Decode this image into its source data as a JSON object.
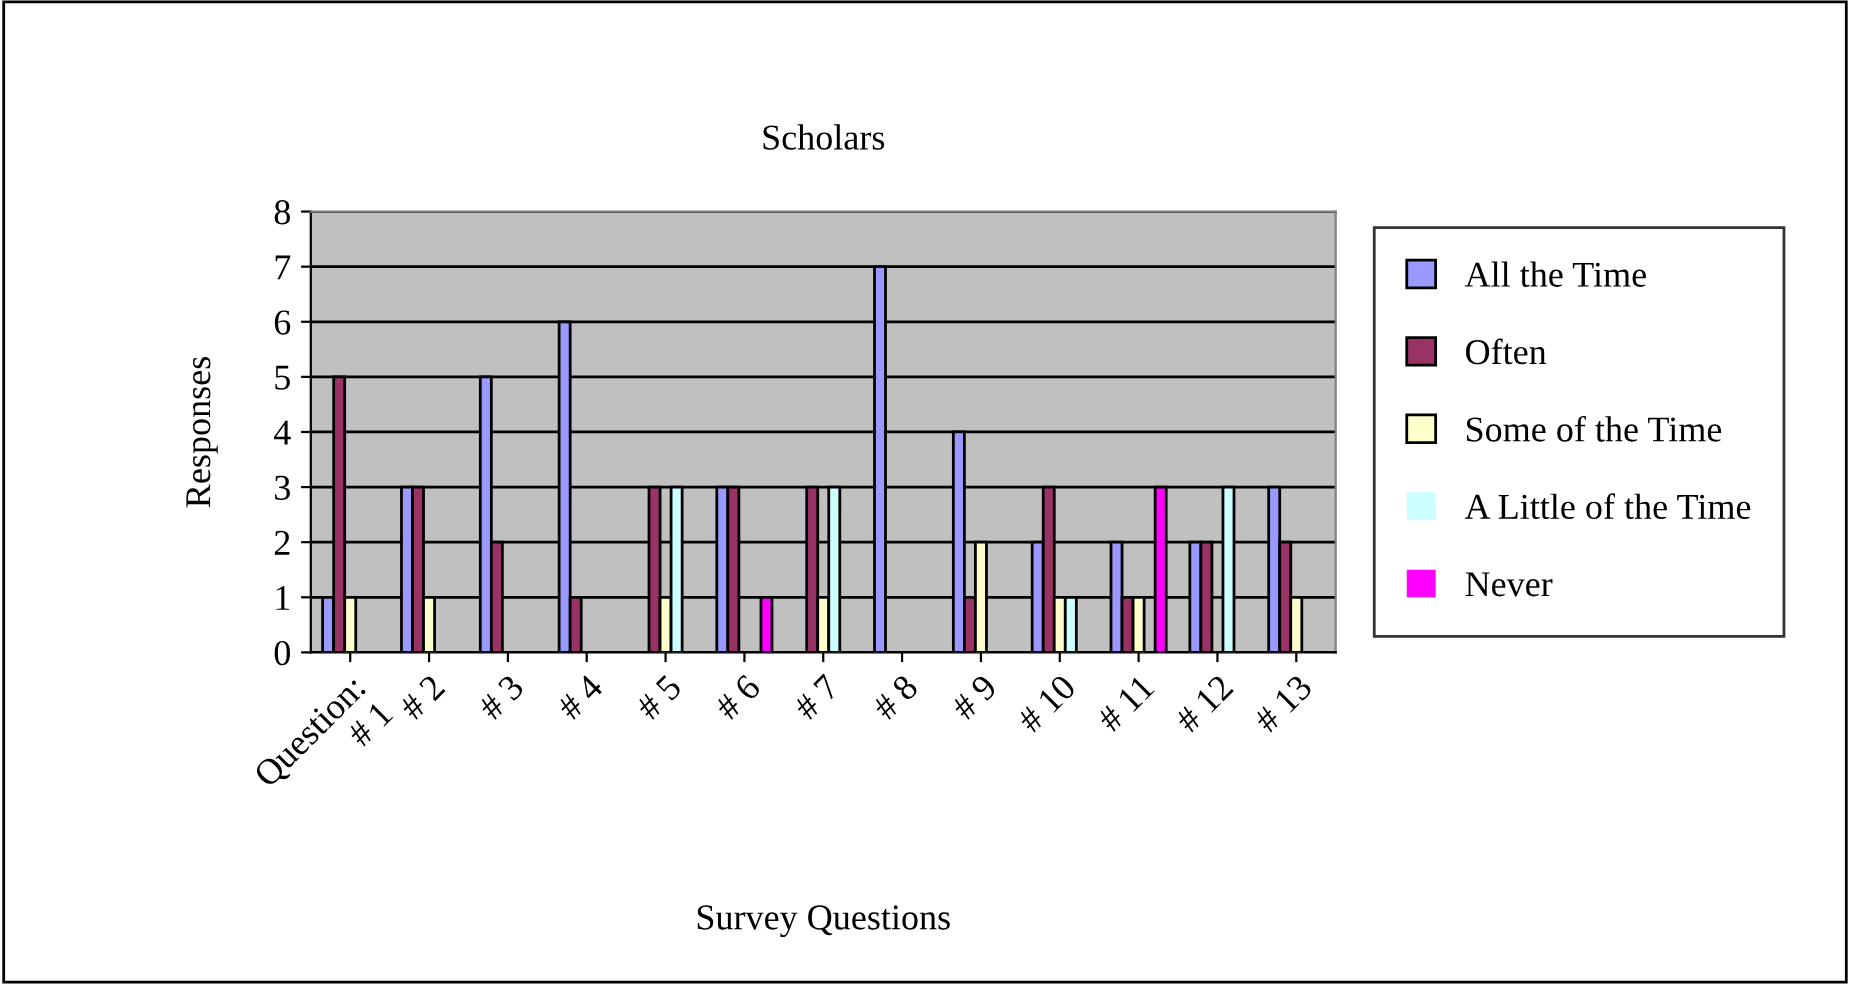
{
  "chart_data": {
    "type": "bar",
    "title": "Scholars",
    "xlabel": "Survey Questions",
    "ylabel": "Responses",
    "categories": [
      "Question:\n# 1",
      "# 2",
      "# 3",
      "# 4",
      "# 5",
      "# 6",
      "# 7",
      "# 8",
      "# 9",
      "# 10",
      "# 11",
      "# 12",
      "# 13"
    ],
    "series": [
      {
        "name": "All the Time",
        "color": "#9999ff",
        "values": [
          1,
          3,
          5,
          6,
          0,
          3,
          0,
          7,
          4,
          2,
          2,
          2,
          3
        ]
      },
      {
        "name": "Often",
        "color": "#993366",
        "values": [
          5,
          3,
          2,
          1,
          3,
          3,
          3,
          0,
          1,
          3,
          1,
          2,
          2
        ]
      },
      {
        "name": "Some of the Time",
        "color": "#ffffcc",
        "values": [
          1,
          1,
          0,
          0,
          1,
          0,
          1,
          0,
          2,
          1,
          1,
          0,
          1
        ]
      },
      {
        "name": "A Little of the Time",
        "color": "#ccffff",
        "values": [
          0,
          0,
          0,
          0,
          3,
          0,
          3,
          0,
          0,
          1,
          0,
          3,
          0
        ]
      },
      {
        "name": "Never",
        "color": "#ff00ff",
        "values": [
          0,
          0,
          0,
          0,
          0,
          1,
          0,
          0,
          0,
          0,
          3,
          0,
          0
        ]
      }
    ],
    "ylim": [
      0,
      8
    ],
    "yticks": [
      0,
      1,
      2,
      3,
      4,
      5,
      6,
      7,
      8
    ],
    "grid": "y",
    "legend": "right"
  }
}
